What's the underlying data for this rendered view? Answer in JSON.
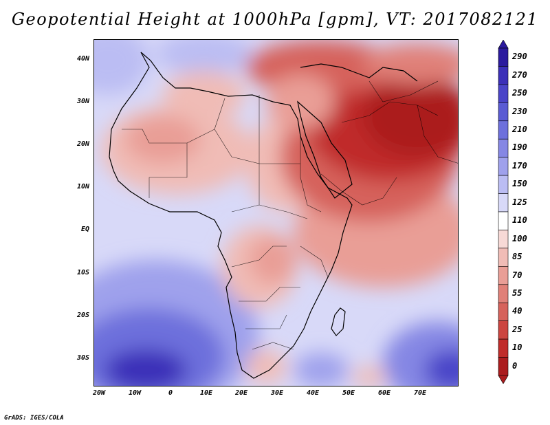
{
  "title": "Geopotential Height at 1000hPa [gpm], VT: 2017082121",
  "credit": "GrADS: IGES/COLA",
  "lat_labels": [
    "40N",
    "30N",
    "20N",
    "10N",
    "EQ",
    "10S",
    "20S",
    "30S"
  ],
  "lon_labels": [
    "20W",
    "10W",
    "0",
    "10E",
    "20E",
    "30E",
    "40E",
    "50E",
    "60E",
    "70E"
  ],
  "colorbar": {
    "labels": [
      "290",
      "270",
      "250",
      "230",
      "210",
      "190",
      "170",
      "150",
      "125",
      "110",
      "100",
      "85",
      "70",
      "55",
      "40",
      "25",
      "10",
      "0"
    ],
    "colors": [
      "#2b1a9e",
      "#3b2fb8",
      "#4a44c8",
      "#5a5bd3",
      "#6d70dc",
      "#8587e4",
      "#9fa1ec",
      "#bbbdf3",
      "#d8d9f8",
      "#ffffff",
      "#f7d9d6",
      "#f0bcb6",
      "#e99e96",
      "#e08078",
      "#d6625b",
      "#cc4540",
      "#c02c2a",
      "#ab1c1e"
    ]
  },
  "map": {
    "lon_range": [
      -22,
      80
    ],
    "lat_range": [
      -37,
      45
    ],
    "projection": "lat-lon"
  }
}
